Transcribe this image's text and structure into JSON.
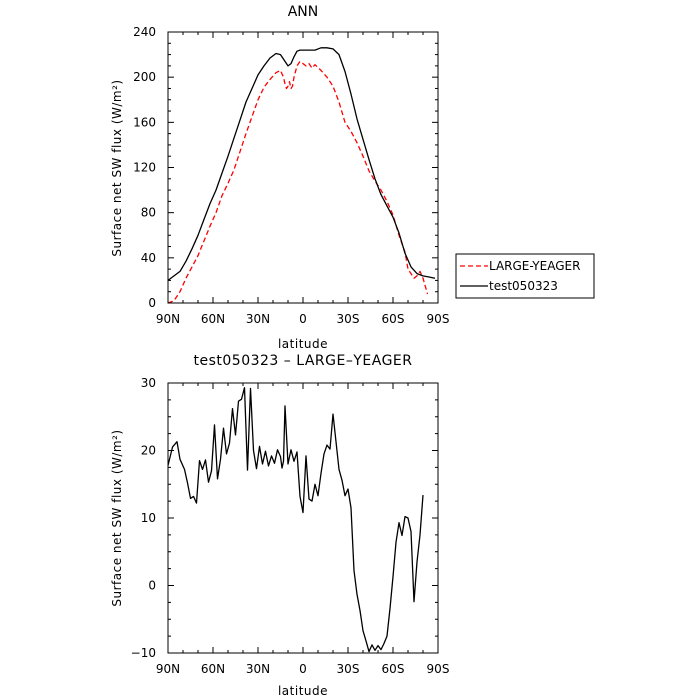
{
  "chart_data": [
    {
      "type": "line",
      "title": "ANN",
      "xlabel": "latitude",
      "ylabel": "Surface net SW flux (W/m²)",
      "xlim": [
        90,
        -90
      ],
      "ylim": [
        0,
        240
      ],
      "xticks": [
        90,
        60,
        30,
        0,
        -30,
        -60,
        -90
      ],
      "xtick_labels": [
        "90N",
        "60N",
        "30N",
        "0",
        "30S",
        "60S",
        "90S"
      ],
      "yticks": [
        0,
        40,
        80,
        120,
        160,
        200,
        240
      ],
      "ytick_labels": [
        "0",
        "40",
        "80",
        "120",
        "160",
        "200",
        "240"
      ],
      "legend_position": "right, outside plot",
      "series": [
        {
          "name": "LARGE-YEAGER",
          "color": "#ff0000",
          "dash": "dashed",
          "x": [
            90,
            86,
            82,
            78,
            74,
            70,
            66,
            62,
            58,
            54,
            50,
            46,
            42,
            38,
            34,
            30,
            26,
            22,
            18,
            15,
            13,
            12,
            11,
            10,
            9,
            8,
            7,
            6,
            4,
            2,
            0,
            -2,
            -4,
            -6,
            -8,
            -12,
            -16,
            -20,
            -24,
            -28,
            -32,
            -36,
            -40,
            -44,
            -48,
            -52,
            -56,
            -60,
            -64,
            -68,
            -70,
            -72,
            -74,
            -76,
            -78,
            -80,
            -83
          ],
          "y": [
            0,
            2,
            10,
            22,
            32,
            42,
            55,
            68,
            80,
            95,
            106,
            118,
            134,
            150,
            165,
            180,
            191,
            198,
            204,
            206,
            200,
            194,
            190,
            192,
            196,
            190,
            192,
            200,
            210,
            214,
            212,
            210,
            212,
            208,
            211,
            206,
            200,
            192,
            178,
            160,
            152,
            142,
            130,
            117,
            108,
            100,
            90,
            78,
            60,
            45,
            30,
            26,
            22,
            24,
            28,
            22,
            8
          ]
        },
        {
          "name": "test050323",
          "color": "#000000",
          "dash": "solid",
          "x": [
            90,
            86,
            82,
            78,
            74,
            70,
            66,
            62,
            58,
            54,
            50,
            46,
            42,
            38,
            34,
            30,
            26,
            22,
            18,
            15,
            12,
            10,
            8,
            6,
            4,
            2,
            0,
            -4,
            -8,
            -12,
            -16,
            -20,
            -24,
            -28,
            -32,
            -36,
            -40,
            -44,
            -48,
            -52,
            -56,
            -60,
            -64,
            -68,
            -72,
            -76,
            -80,
            -84,
            -88
          ],
          "y": [
            20,
            24,
            28,
            37,
            48,
            60,
            74,
            88,
            100,
            115,
            130,
            146,
            162,
            178,
            190,
            202,
            210,
            217,
            221,
            220,
            214,
            210,
            212,
            218,
            223,
            224,
            224,
            224,
            224,
            226,
            226,
            225,
            220,
            205,
            185,
            163,
            145,
            127,
            110,
            96,
            86,
            76,
            62,
            44,
            32,
            26,
            24,
            23,
            22
          ]
        }
      ]
    },
    {
      "type": "line",
      "title": "test050323 – LARGE–YEAGER",
      "xlabel": "latitude",
      "ylabel": "Surface net SW flux (W/m²)",
      "xlim": [
        90,
        -90
      ],
      "ylim": [
        -10,
        30
      ],
      "xticks": [
        90,
        60,
        30,
        0,
        -30,
        -60,
        -90
      ],
      "xtick_labels": [
        "90N",
        "60N",
        "30N",
        "0",
        "30S",
        "60S",
        "90S"
      ],
      "yticks": [
        -10,
        0,
        10,
        20,
        30
      ],
      "ytick_labels": [
        "−10",
        "0",
        "10",
        "20",
        "30"
      ],
      "series": [
        {
          "color": "#000000",
          "dash": "solid",
          "x": [
            90,
            87,
            84,
            82,
            79,
            77,
            75,
            73,
            71,
            69,
            67,
            65,
            63,
            61,
            59,
            57,
            55,
            53,
            51,
            49,
            47,
            45,
            43,
            41,
            39,
            37,
            35,
            33,
            31,
            29,
            27,
            25,
            23,
            21,
            19,
            17,
            15,
            14,
            13,
            12,
            10,
            8,
            6,
            4,
            2,
            0,
            -2,
            -4,
            -6,
            -8,
            -10,
            -12,
            -14,
            -16,
            -18,
            -20,
            -22,
            -24,
            -26,
            -28,
            -30,
            -32,
            -34,
            -36,
            -38,
            -40,
            -42,
            -44,
            -46,
            -48,
            -50,
            -52,
            -54,
            -56,
            -58,
            -60,
            -62,
            -64,
            -66,
            -68,
            -70,
            -72,
            -74,
            -76,
            -78,
            -80
          ],
          "y": [
            17.8,
            20.5,
            21.3,
            18.7,
            17.2,
            15.2,
            12.9,
            13.2,
            12.2,
            18.5,
            17.2,
            18.6,
            15.3,
            17.0,
            23.8,
            15.8,
            18.7,
            23.3,
            19.5,
            21.1,
            26.2,
            22.3,
            27.3,
            27.6,
            29.3,
            17.1,
            29.2,
            20.0,
            17.3,
            20.6,
            18.0,
            19.9,
            17.7,
            19.2,
            18.1,
            20.1,
            19.1,
            17.4,
            18.4,
            26.6,
            18.0,
            20.1,
            18.4,
            19.8,
            13.2,
            10.8,
            19.2,
            12.8,
            12.5,
            15.0,
            13.3,
            16.6,
            19.5,
            20.8,
            20.2,
            25.4,
            21.3,
            17.2,
            15.6,
            13.3,
            14.3,
            11.5,
            2.2,
            -1.3,
            -3.7,
            -6.7,
            -8.2,
            -9.8,
            -8.8,
            -9.6,
            -8.9,
            -9.5,
            -8.6,
            -7.5,
            -3.4,
            1.3,
            6.4,
            9.3,
            7.4,
            10.2,
            10.0,
            8.0,
            -2.4,
            3.5,
            7.5,
            13.4
          ]
        }
      ]
    }
  ]
}
